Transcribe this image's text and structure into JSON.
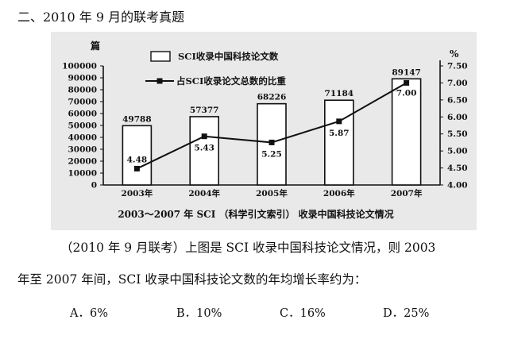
{
  "heading": "二、2010 年 9 月的联考真题",
  "chart_data": {
    "type": "bar+line",
    "categories": [
      "2003年",
      "2004年",
      "2005年",
      "2006年",
      "2007年"
    ],
    "bar_series": {
      "name": "SCI收录中国科技论文数",
      "values": [
        49788,
        57377,
        68226,
        71184,
        89147
      ]
    },
    "line_series": {
      "name": "占SCI收录论文总数的比重",
      "values": [
        4.48,
        5.43,
        5.25,
        5.87,
        7.0
      ]
    },
    "bar_labels": [
      "49788",
      "57377",
      "68226",
      "71184",
      "89147"
    ],
    "line_labels": [
      "4.48",
      "5.43",
      "5.25",
      "5.87",
      "7.00"
    ],
    "left_unit": "篇",
    "right_unit": "%",
    "ylim_left": [
      0,
      100000
    ],
    "ylim_right": [
      4.0,
      7.5
    ],
    "left_ticks": [
      "100000",
      "90000",
      "80000",
      "70000",
      "60000",
      "50000",
      "40000",
      "30000",
      "20000",
      "10000",
      "0"
    ],
    "right_ticks": [
      "7.50",
      "7.00",
      "6.50",
      "6.00",
      "5.50",
      "5.00",
      "4.50",
      "4.00"
    ],
    "title": "2003～2007 年 SCI （科学引文索引） 收录中国科技论文情况"
  },
  "question": {
    "line1": "（2010 年 9 月联考）上图是 SCI 收录中国科技论文情况，则 2003",
    "line2": "年至 2007 年间，SCI 收录中国科技论文数的年均增长率约为：",
    "options": [
      "A．6%",
      "B．10%",
      "C．16%",
      "D．25%"
    ]
  }
}
